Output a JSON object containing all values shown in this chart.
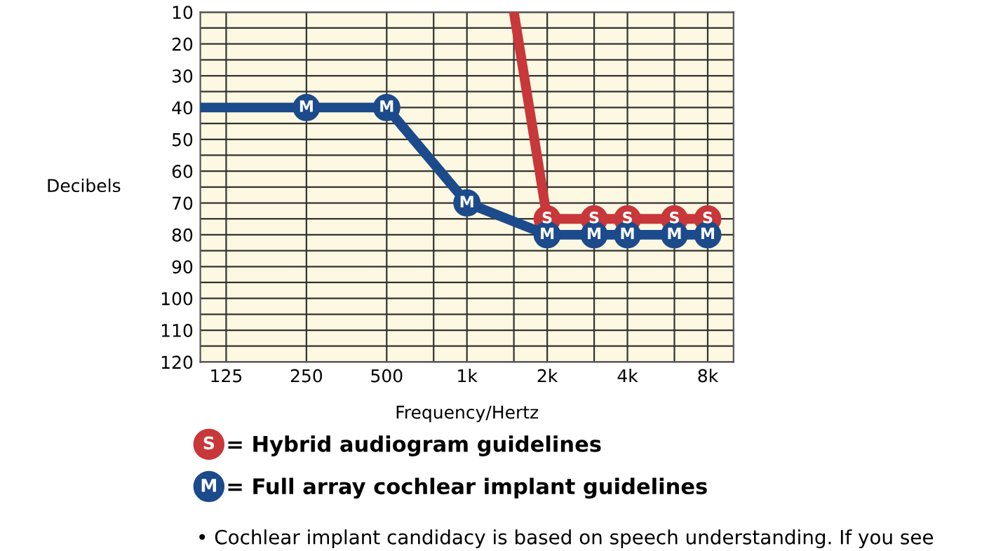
{
  "chart_data": {
    "type": "line",
    "xlabel": "Frequency/Hertz",
    "ylabel": "Decibels",
    "series": [
      {
        "name": "= Hybrid audiogram guidelines",
        "color": "#c8373a",
        "x": [
          1500,
          2000,
          3000,
          4000,
          6000,
          8000
        ],
        "values": [
          10,
          75,
          75,
          75,
          75,
          75
        ],
        "value_labels": [
          null,
          "S",
          "S",
          "S",
          "S",
          "S"
        ]
      },
      {
        "name": "= Full array cochlear implant guidelines",
        "color": "#1c4b8c",
        "x": [
          100,
          250,
          500,
          1000,
          2000,
          3000,
          4000,
          6000,
          8000
        ],
        "values": [
          40,
          40,
          40,
          70,
          80,
          80,
          80,
          80,
          80
        ],
        "value_labels": [
          null,
          "M",
          "M",
          "M",
          "M",
          "M",
          "M",
          "M",
          "M"
        ]
      }
    ],
    "log": "x",
    "xlim": [
      100,
      10000
    ],
    "xticks": [
      125,
      250,
      500,
      {
        "value": 750,
        "label": null
      },
      {
        "value": 1000,
        "label": "1k"
      },
      {
        "value": 1500,
        "label": null
      },
      {
        "value": 2000,
        "label": "2k"
      },
      {
        "value": 3000,
        "label": null
      },
      {
        "value": 4000,
        "label": "4k"
      },
      {
        "value": 6000,
        "label": null
      },
      {
        "value": 8000,
        "label": "8k"
      }
    ],
    "ylim": [
      120,
      10
    ],
    "yticks": [
      10,
      {
        "value": 15,
        "label": null
      },
      20,
      {
        "value": 25,
        "label": null
      },
      30,
      {
        "value": 35,
        "label": null
      },
      40,
      {
        "value": 45,
        "label": null
      },
      50,
      {
        "value": 55,
        "label": null
      },
      60,
      {
        "value": 65,
        "label": null
      },
      70,
      {
        "value": 75,
        "label": null
      },
      80,
      {
        "value": 85,
        "label": null
      },
      90,
      {
        "value": 95,
        "label": null
      },
      100,
      {
        "value": 105,
        "label": null
      },
      110,
      {
        "value": 115,
        "label": null
      },
      120
    ],
    "grid": true,
    "marker": "circle",
    "line_style": "solid",
    "legend": "bottom left",
    "annotations": [
      "• Cochlear implant candidacy is based on speech understanding. If you see"
    ]
  }
}
